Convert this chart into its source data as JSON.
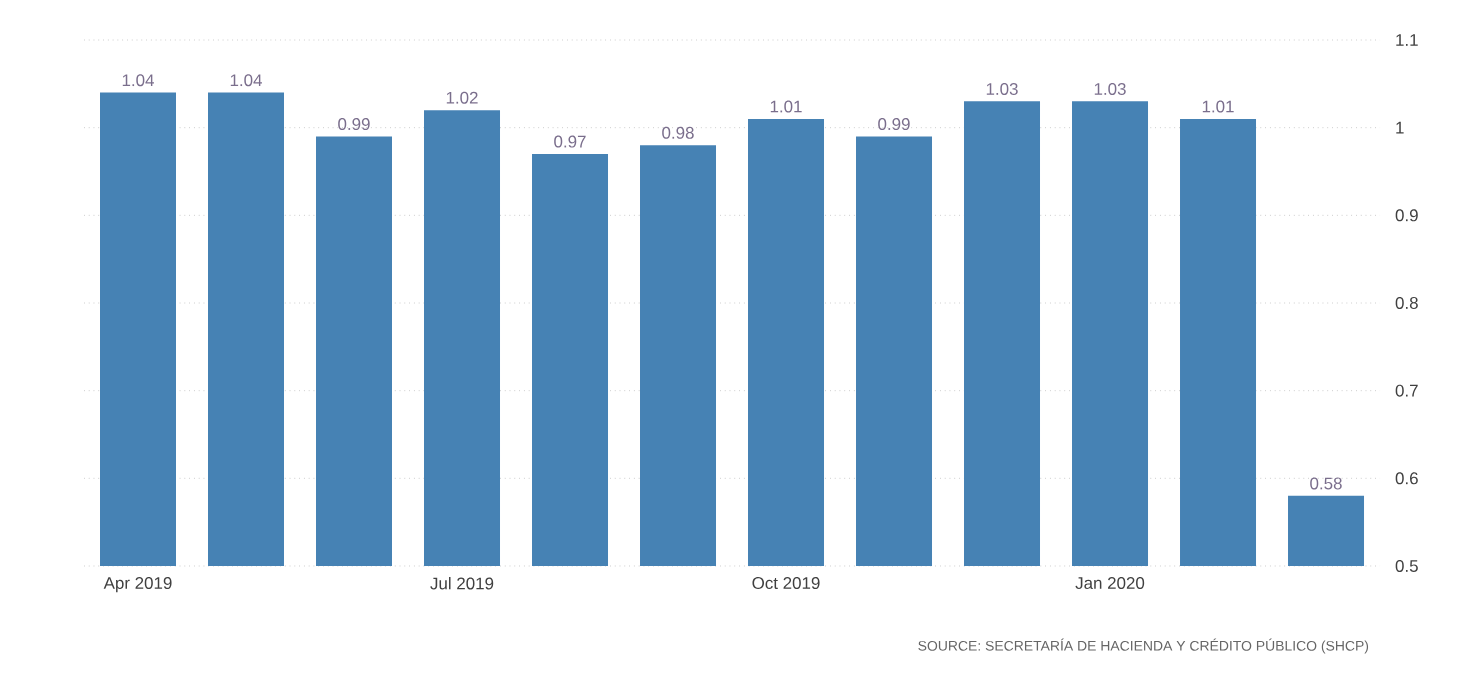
{
  "chart_data": {
    "type": "bar",
    "categories": [
      "Apr 2019",
      null,
      null,
      "Jul 2019",
      null,
      null,
      "Oct 2019",
      null,
      null,
      "Jan 2020",
      null,
      null
    ],
    "values": [
      1.04,
      1.04,
      0.99,
      1.02,
      0.97,
      0.98,
      1.01,
      0.99,
      1.03,
      1.03,
      1.01,
      0.58
    ],
    "color": "#4682b4",
    "ylim": [
      0.5,
      1.1
    ],
    "yticks": [
      0.5,
      0.6,
      0.7,
      0.8,
      0.9,
      1,
      1.1
    ],
    "grid": "y",
    "data_labels": true,
    "annotations": [
      "SOURCE: SECRETARÍA DE HACIENDA Y CRÉDITO PÚBLICO (SHCP)"
    ]
  }
}
